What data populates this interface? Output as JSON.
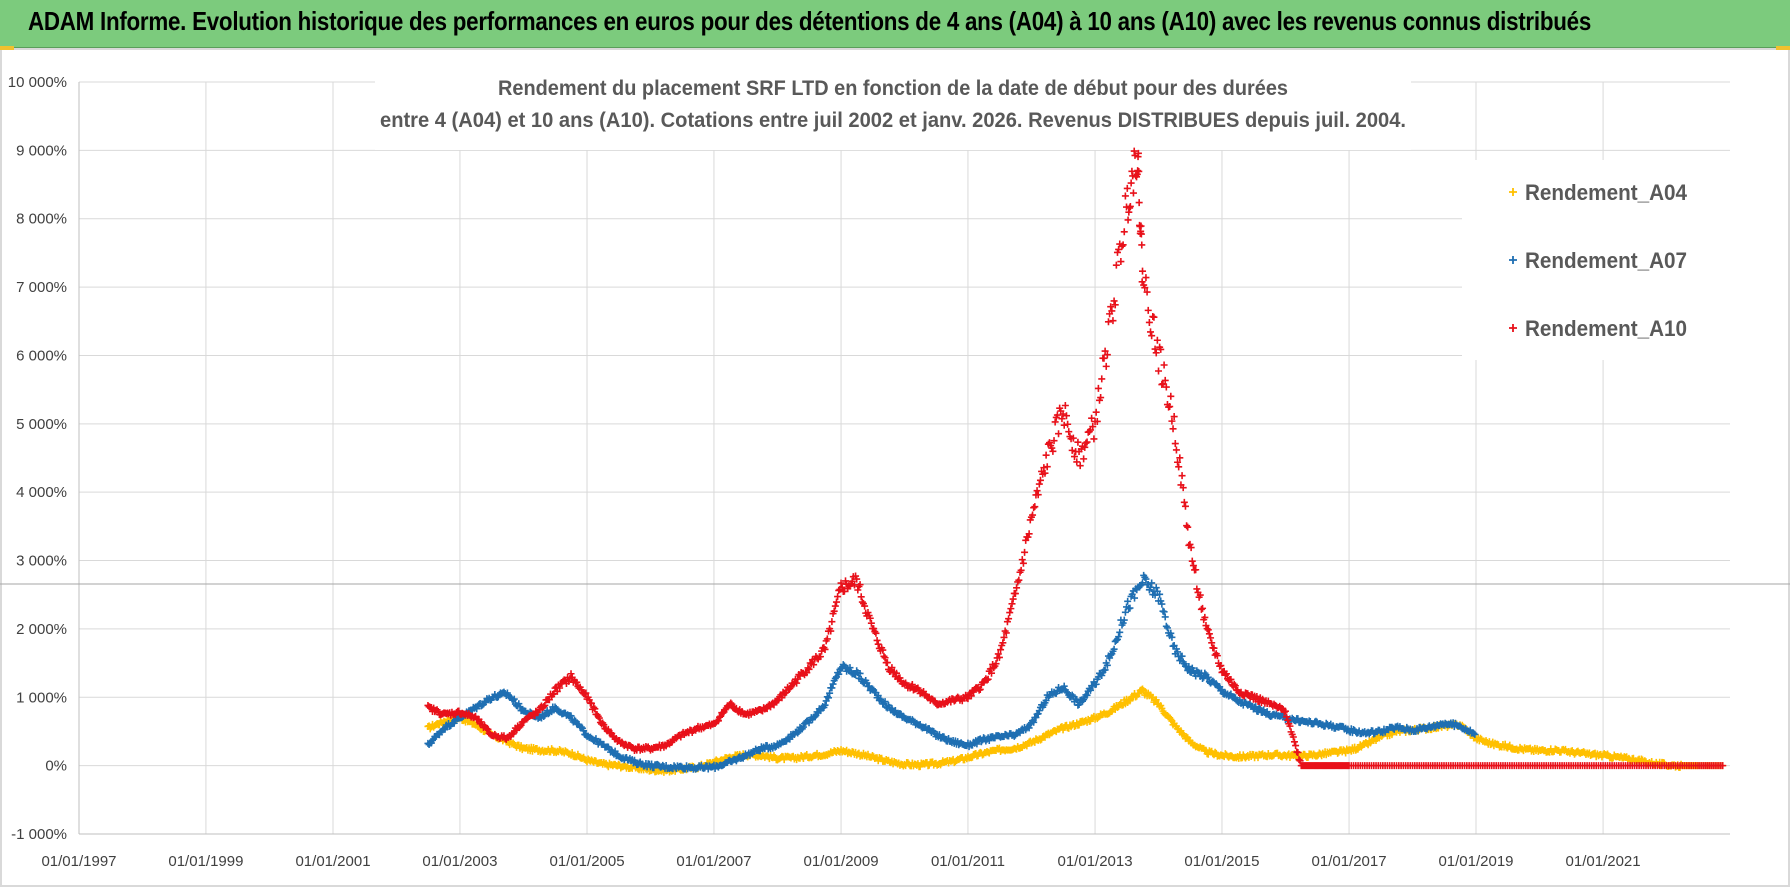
{
  "banner": {
    "title": "ADAM Informe. Evolution historique des performances en euros pour des détentions de 4 ans (A04) à 10 ans (A10) avec les revenus connus distribués"
  },
  "chart_data": {
    "type": "scatter",
    "title_lines": [
      "Rendement du placement SRF LTD en fonction de la date de début pour des durées",
      "entre 4 (A04) et 10 ans (A10).  Cotations entre juil 2002 et janv. 2026. Revenus DISTRIBUES depuis juil. 2004."
    ],
    "x_tick_labels": [
      "01/01/1997",
      "01/01/1999",
      "01/01/2001",
      "01/01/2003",
      "01/01/2005",
      "01/01/2007",
      "01/01/2009",
      "01/01/2011",
      "01/01/2013",
      "01/01/2015",
      "01/01/2017",
      "01/01/2019",
      "01/01/2021"
    ],
    "y_tick_labels": [
      "-1 000%",
      "0%",
      "1 000%",
      "2 000%",
      "3 000%",
      "4 000%",
      "5 000%",
      "6 000%",
      "7 000%",
      "8 000%",
      "9 000%",
      "10 000%"
    ],
    "xlim": [
      "1997-01-01",
      "2023-01-01"
    ],
    "ylim": [
      -1000,
      10000
    ],
    "grid": true,
    "legend_position": "top-right",
    "series": [
      {
        "name": "Rendement_A04",
        "color": "#ffc000",
        "marker": "+",
        "points": [
          [
            "2002-07-01",
            550
          ],
          [
            "2002-10-01",
            650
          ],
          [
            "2003-01-01",
            700
          ],
          [
            "2003-04-01",
            600
          ],
          [
            "2003-07-01",
            450
          ],
          [
            "2003-10-01",
            350
          ],
          [
            "2004-01-01",
            250
          ],
          [
            "2004-04-01",
            230
          ],
          [
            "2004-07-01",
            220
          ],
          [
            "2004-10-01",
            180
          ],
          [
            "2005-01-01",
            80
          ],
          [
            "2005-04-01",
            20
          ],
          [
            "2005-07-01",
            0
          ],
          [
            "2005-10-01",
            -30
          ],
          [
            "2006-01-01",
            -60
          ],
          [
            "2006-04-01",
            -70
          ],
          [
            "2006-07-01",
            -50
          ],
          [
            "2006-10-01",
            -20
          ],
          [
            "2007-01-01",
            50
          ],
          [
            "2007-04-01",
            120
          ],
          [
            "2007-07-01",
            160
          ],
          [
            "2007-10-01",
            150
          ],
          [
            "2008-01-01",
            110
          ],
          [
            "2008-04-01",
            110
          ],
          [
            "2008-07-01",
            140
          ],
          [
            "2008-10-01",
            170
          ],
          [
            "2009-01-01",
            220
          ],
          [
            "2009-04-01",
            180
          ],
          [
            "2009-07-01",
            120
          ],
          [
            "2009-10-01",
            60
          ],
          [
            "2010-01-01",
            20
          ],
          [
            "2010-04-01",
            10
          ],
          [
            "2010-07-01",
            30
          ],
          [
            "2010-10-01",
            60
          ],
          [
            "2011-01-01",
            120
          ],
          [
            "2011-04-01",
            180
          ],
          [
            "2011-07-01",
            230
          ],
          [
            "2011-10-01",
            260
          ],
          [
            "2012-01-01",
            340
          ],
          [
            "2012-04-01",
            450
          ],
          [
            "2012-07-01",
            550
          ],
          [
            "2012-10-01",
            620
          ],
          [
            "2013-01-01",
            700
          ],
          [
            "2013-04-01",
            800
          ],
          [
            "2013-07-01",
            950
          ],
          [
            "2013-10-01",
            1100
          ],
          [
            "2014-01-01",
            900
          ],
          [
            "2014-04-01",
            600
          ],
          [
            "2014-07-01",
            350
          ],
          [
            "2014-10-01",
            200
          ],
          [
            "2015-01-01",
            150
          ],
          [
            "2015-04-01",
            130
          ],
          [
            "2015-07-01",
            140
          ],
          [
            "2015-10-01",
            160
          ],
          [
            "2016-01-01",
            150
          ],
          [
            "2016-04-01",
            140
          ],
          [
            "2016-07-01",
            160
          ],
          [
            "2016-10-01",
            190
          ],
          [
            "2017-01-01",
            220
          ],
          [
            "2017-04-01",
            300
          ],
          [
            "2017-07-01",
            420
          ],
          [
            "2017-10-01",
            500
          ],
          [
            "2018-01-01",
            520
          ],
          [
            "2018-04-01",
            550
          ],
          [
            "2018-07-01",
            580
          ],
          [
            "2018-10-01",
            600
          ],
          [
            "2019-01-01",
            400
          ],
          [
            "2019-04-01",
            320
          ],
          [
            "2019-07-01",
            280
          ],
          [
            "2019-10-01",
            240
          ],
          [
            "2020-01-01",
            220
          ],
          [
            "2020-04-01",
            230
          ],
          [
            "2020-07-01",
            200
          ],
          [
            "2020-10-01",
            170
          ],
          [
            "2021-01-01",
            150
          ],
          [
            "2021-04-01",
            120
          ],
          [
            "2021-07-01",
            90
          ],
          [
            "2021-10-01",
            40
          ],
          [
            "2022-01-01",
            10
          ],
          [
            "2022-04-01",
            0
          ],
          [
            "2022-07-01",
            0
          ],
          [
            "2022-12-01",
            0
          ]
        ]
      },
      {
        "name": "Rendement_A07",
        "color": "#1f6fb2",
        "marker": "+",
        "points": [
          [
            "2002-07-01",
            300
          ],
          [
            "2002-10-01",
            550
          ],
          [
            "2003-01-01",
            700
          ],
          [
            "2003-04-01",
            850
          ],
          [
            "2003-07-01",
            1000
          ],
          [
            "2003-10-01",
            1050
          ],
          [
            "2004-01-01",
            800
          ],
          [
            "2004-04-01",
            700
          ],
          [
            "2004-07-01",
            850
          ],
          [
            "2004-10-01",
            700
          ],
          [
            "2005-01-01",
            450
          ],
          [
            "2005-04-01",
            300
          ],
          [
            "2005-07-01",
            150
          ],
          [
            "2005-10-01",
            50
          ],
          [
            "2006-01-01",
            0
          ],
          [
            "2006-04-01",
            -20
          ],
          [
            "2006-07-01",
            -20
          ],
          [
            "2006-10-01",
            -30
          ],
          [
            "2007-01-01",
            -20
          ],
          [
            "2007-04-01",
            50
          ],
          [
            "2007-07-01",
            150
          ],
          [
            "2007-10-01",
            250
          ],
          [
            "2008-01-01",
            300
          ],
          [
            "2008-04-01",
            450
          ],
          [
            "2008-07-01",
            650
          ],
          [
            "2008-10-01",
            900
          ],
          [
            "2009-01-01",
            1450
          ],
          [
            "2009-04-01",
            1350
          ],
          [
            "2009-07-01",
            1100
          ],
          [
            "2009-10-01",
            850
          ],
          [
            "2010-01-01",
            700
          ],
          [
            "2010-04-01",
            600
          ],
          [
            "2010-07-01",
            450
          ],
          [
            "2010-10-01",
            350
          ],
          [
            "2011-01-01",
            300
          ],
          [
            "2011-04-01",
            380
          ],
          [
            "2011-07-01",
            420
          ],
          [
            "2011-10-01",
            450
          ],
          [
            "2012-01-01",
            600
          ],
          [
            "2012-04-01",
            1000
          ],
          [
            "2012-07-01",
            1150
          ],
          [
            "2012-10-01",
            900
          ],
          [
            "2013-01-01",
            1200
          ],
          [
            "2013-04-01",
            1600
          ],
          [
            "2013-07-01",
            2300
          ],
          [
            "2013-10-01",
            2700
          ],
          [
            "2014-01-01",
            2500
          ],
          [
            "2014-04-01",
            1700
          ],
          [
            "2014-07-01",
            1400
          ],
          [
            "2014-10-01",
            1300
          ],
          [
            "2015-01-01",
            1100
          ],
          [
            "2015-04-01",
            950
          ],
          [
            "2015-07-01",
            850
          ],
          [
            "2015-10-01",
            750
          ],
          [
            "2016-01-01",
            700
          ],
          [
            "2016-04-01",
            650
          ],
          [
            "2016-07-01",
            620
          ],
          [
            "2016-10-01",
            580
          ],
          [
            "2017-01-01",
            520
          ],
          [
            "2017-04-01",
            480
          ],
          [
            "2017-07-01",
            500
          ],
          [
            "2017-10-01",
            560
          ],
          [
            "2018-01-01",
            520
          ],
          [
            "2018-04-01",
            560
          ],
          [
            "2018-07-01",
            620
          ],
          [
            "2018-10-01",
            580
          ],
          [
            "2019-01-01",
            450
          ]
        ]
      },
      {
        "name": "Rendement_A10",
        "color": "#e8111a",
        "marker": "+",
        "points": [
          [
            "2002-07-01",
            850
          ],
          [
            "2002-10-01",
            750
          ],
          [
            "2003-01-01",
            780
          ],
          [
            "2003-04-01",
            700
          ],
          [
            "2003-07-01",
            450
          ],
          [
            "2003-10-01",
            400
          ],
          [
            "2004-01-01",
            650
          ],
          [
            "2004-04-01",
            800
          ],
          [
            "2004-07-01",
            1100
          ],
          [
            "2004-10-01",
            1300
          ],
          [
            "2005-01-01",
            1000
          ],
          [
            "2005-04-01",
            600
          ],
          [
            "2005-07-01",
            350
          ],
          [
            "2005-10-01",
            250
          ],
          [
            "2006-01-01",
            250
          ],
          [
            "2006-04-01",
            300
          ],
          [
            "2006-07-01",
            450
          ],
          [
            "2006-10-01",
            550
          ],
          [
            "2007-01-01",
            600
          ],
          [
            "2007-04-01",
            900
          ],
          [
            "2007-07-01",
            750
          ],
          [
            "2007-10-01",
            800
          ],
          [
            "2008-01-01",
            950
          ],
          [
            "2008-04-01",
            1200
          ],
          [
            "2008-07-01",
            1450
          ],
          [
            "2008-10-01",
            1700
          ],
          [
            "2009-01-01",
            2600
          ],
          [
            "2009-04-01",
            2700
          ],
          [
            "2009-07-01",
            2000
          ],
          [
            "2009-10-01",
            1450
          ],
          [
            "2010-01-01",
            1200
          ],
          [
            "2010-04-01",
            1100
          ],
          [
            "2010-07-01",
            900
          ],
          [
            "2010-10-01",
            950
          ],
          [
            "2011-01-01",
            1000
          ],
          [
            "2011-04-01",
            1200
          ],
          [
            "2011-07-01",
            1600
          ],
          [
            "2011-10-01",
            2500
          ],
          [
            "2012-01-01",
            3600
          ],
          [
            "2012-04-01",
            4500
          ],
          [
            "2012-07-01",
            5200
          ],
          [
            "2012-10-01",
            4500
          ],
          [
            "2013-01-01",
            5000
          ],
          [
            "2013-04-01",
            6500
          ],
          [
            "2013-07-01",
            8200
          ],
          [
            "2013-09-01",
            9000
          ],
          [
            "2013-10-01",
            7200
          ],
          [
            "2014-01-01",
            6000
          ],
          [
            "2014-04-01",
            5000
          ],
          [
            "2014-07-01",
            3200
          ],
          [
            "2014-10-01",
            2000
          ],
          [
            "2015-01-01",
            1400
          ],
          [
            "2015-04-01",
            1100
          ],
          [
            "2015-07-01",
            1000
          ],
          [
            "2015-10-01",
            900
          ],
          [
            "2016-01-01",
            800
          ],
          [
            "2016-04-01",
            0
          ],
          [
            "2016-07-01",
            0
          ],
          [
            "2016-10-01",
            0
          ],
          [
            "2017-01-01",
            0
          ],
          [
            "2017-07-01",
            0
          ],
          [
            "2018-01-01",
            0
          ],
          [
            "2018-07-01",
            0
          ],
          [
            "2019-01-01",
            0
          ],
          [
            "2019-07-01",
            0
          ],
          [
            "2020-01-01",
            0
          ],
          [
            "2020-07-01",
            0
          ],
          [
            "2021-01-01",
            0
          ],
          [
            "2021-07-01",
            0
          ],
          [
            "2022-01-01",
            0
          ],
          [
            "2022-07-01",
            0
          ],
          [
            "2022-12-01",
            0
          ]
        ]
      }
    ]
  }
}
